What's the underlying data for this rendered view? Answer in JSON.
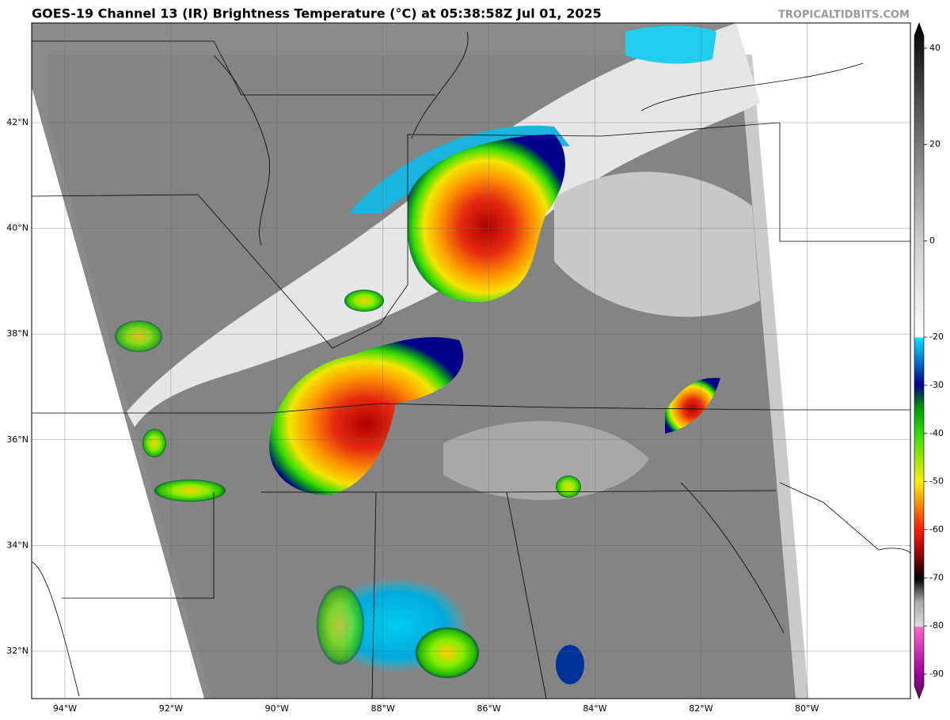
{
  "header": {
    "title": "GOES-19 Channel 13 (IR) Brightness Temperature (°C) at 05:38:58Z Jul 01, 2025",
    "credit": "TROPICALTIDBITS.COM"
  },
  "map": {
    "latitude_labels": [
      "42°N",
      "40°N",
      "38°N",
      "36°N",
      "34°N",
      "32°N"
    ],
    "longitude_labels": [
      "94°W",
      "92°W",
      "90°W",
      "88°W",
      "86°W",
      "84°W",
      "82°W",
      "80°W"
    ]
  },
  "colorbar": {
    "ticks": [
      40,
      20,
      0,
      -20,
      -30,
      -40,
      -50,
      -60,
      -70,
      -80,
      -90
    ]
  }
}
